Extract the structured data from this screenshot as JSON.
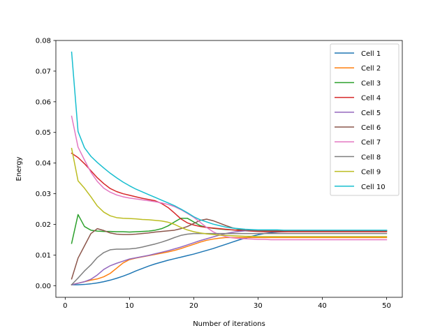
{
  "chart_data": {
    "type": "line",
    "title": "",
    "xlabel": "Number of iterations",
    "ylabel": "Energy",
    "xlim": [
      -1.45,
      52.45
    ],
    "ylim": [
      -0.0038,
      0.08
    ],
    "xticks": [
      0,
      10,
      20,
      30,
      40,
      50
    ],
    "xtick_labels": [
      "0",
      "10",
      "20",
      "30",
      "40",
      "50"
    ],
    "yticks": [
      0.0,
      0.01,
      0.02,
      0.03,
      0.04,
      0.05,
      0.06,
      0.07,
      0.08
    ],
    "ytick_labels": [
      "0.00",
      "0.01",
      "0.02",
      "0.03",
      "0.04",
      "0.05",
      "0.06",
      "0.07",
      "0.08"
    ],
    "grid": false,
    "legend": "top-right",
    "x": [
      1,
      2,
      3,
      4,
      5,
      6,
      7,
      8,
      9,
      10,
      11,
      12,
      13,
      14,
      15,
      16,
      17,
      18,
      19,
      20,
      21,
      22,
      23,
      24,
      25,
      26,
      27,
      28,
      29,
      30,
      31,
      32,
      33,
      34,
      35,
      36,
      37,
      38,
      39,
      40,
      41,
      42,
      43,
      44,
      45,
      46,
      47,
      48,
      49,
      50
    ],
    "series": [
      {
        "name": "Cell 1",
        "color": "#1f77b4",
        "values": [
          0.0003,
          0.0003,
          0.0004,
          0.0006,
          0.0009,
          0.0013,
          0.0018,
          0.0024,
          0.0031,
          0.0039,
          0.0048,
          0.0056,
          0.0064,
          0.0071,
          0.0077,
          0.0083,
          0.0088,
          0.0093,
          0.0098,
          0.0103,
          0.0109,
          0.0115,
          0.0121,
          0.0128,
          0.0135,
          0.0142,
          0.0149,
          0.0155,
          0.0161,
          0.0166,
          0.017,
          0.0173,
          0.0175,
          0.0176,
          0.0177,
          0.0177,
          0.0177,
          0.0177,
          0.0177,
          0.0177,
          0.0177,
          0.0177,
          0.0177,
          0.0177,
          0.0177,
          0.0177,
          0.0177,
          0.0177,
          0.0177,
          0.0177
        ]
      },
      {
        "name": "Cell 2",
        "color": "#ff7f0e",
        "values": [
          0.0003,
          0.0008,
          0.0013,
          0.0018,
          0.0022,
          0.0029,
          0.004,
          0.0057,
          0.0074,
          0.0085,
          0.009,
          0.0094,
          0.0098,
          0.0102,
          0.0106,
          0.011,
          0.0115,
          0.0121,
          0.0128,
          0.0135,
          0.0142,
          0.0148,
          0.0152,
          0.0155,
          0.0157,
          0.0157,
          0.0157,
          0.0157,
          0.0157,
          0.0157,
          0.0157,
          0.0157,
          0.0157,
          0.0157,
          0.0157,
          0.0157,
          0.0157,
          0.0157,
          0.0157,
          0.0157,
          0.0157,
          0.0157,
          0.0157,
          0.0157,
          0.0157,
          0.0157,
          0.0157,
          0.0157,
          0.0157,
          0.0157
        ]
      },
      {
        "name": "Cell 3",
        "color": "#2ca02c",
        "values": [
          0.0138,
          0.0232,
          0.0193,
          0.0181,
          0.0178,
          0.0177,
          0.0177,
          0.0176,
          0.0176,
          0.0175,
          0.0176,
          0.0177,
          0.0178,
          0.0181,
          0.0186,
          0.0195,
          0.0208,
          0.022,
          0.022,
          0.0208,
          0.0196,
          0.019,
          0.0187,
          0.0185,
          0.0183,
          0.0182,
          0.0181,
          0.018,
          0.018,
          0.018,
          0.018,
          0.018,
          0.018,
          0.018,
          0.018,
          0.018,
          0.018,
          0.018,
          0.018,
          0.018,
          0.018,
          0.018,
          0.018,
          0.018,
          0.018,
          0.018,
          0.018,
          0.018,
          0.018,
          0.018
        ]
      },
      {
        "name": "Cell 4",
        "color": "#d62728",
        "values": [
          0.0432,
          0.0418,
          0.0398,
          0.0375,
          0.0352,
          0.0333,
          0.0317,
          0.0307,
          0.03,
          0.0295,
          0.029,
          0.0285,
          0.0281,
          0.0277,
          0.0268,
          0.0255,
          0.0237,
          0.0218,
          0.0205,
          0.0198,
          0.0193,
          0.019,
          0.0188,
          0.0186,
          0.0184,
          0.0182,
          0.018,
          0.0179,
          0.0178,
          0.0177,
          0.0176,
          0.0176,
          0.0176,
          0.0176,
          0.0176,
          0.0176,
          0.0176,
          0.0176,
          0.0176,
          0.0176,
          0.0176,
          0.0176,
          0.0176,
          0.0176,
          0.0176,
          0.0176,
          0.0176,
          0.0176,
          0.0176,
          0.0176
        ]
      },
      {
        "name": "Cell 5",
        "color": "#9467bd",
        "values": [
          0.0003,
          0.0008,
          0.0013,
          0.0021,
          0.0035,
          0.0053,
          0.0065,
          0.0073,
          0.008,
          0.0087,
          0.0091,
          0.0095,
          0.0099,
          0.0104,
          0.0109,
          0.0114,
          0.012,
          0.0126,
          0.0133,
          0.014,
          0.0147,
          0.0153,
          0.0159,
          0.0165,
          0.017,
          0.0174,
          0.0177,
          0.0179,
          0.018,
          0.018,
          0.018,
          0.018,
          0.018,
          0.018,
          0.018,
          0.018,
          0.018,
          0.018,
          0.018,
          0.018,
          0.018,
          0.018,
          0.018,
          0.018,
          0.018,
          0.018,
          0.018,
          0.018,
          0.018,
          0.018
        ]
      },
      {
        "name": "Cell 6",
        "color": "#8c564b",
        "values": [
          0.0022,
          0.009,
          0.013,
          0.017,
          0.0186,
          0.018,
          0.0172,
          0.0168,
          0.0167,
          0.0167,
          0.0168,
          0.017,
          0.0172,
          0.0175,
          0.0177,
          0.0179,
          0.0181,
          0.0186,
          0.0193,
          0.0203,
          0.0213,
          0.0217,
          0.0212,
          0.0204,
          0.0196,
          0.0189,
          0.0184,
          0.0181,
          0.018,
          0.0179,
          0.0179,
          0.0179,
          0.0179,
          0.0179,
          0.0179,
          0.0179,
          0.0179,
          0.0179,
          0.0179,
          0.0179,
          0.0179,
          0.0179,
          0.0179,
          0.0179,
          0.0179,
          0.0179,
          0.0179,
          0.0179,
          0.0179,
          0.0179
        ]
      },
      {
        "name": "Cell 7",
        "color": "#e377c2",
        "values": [
          0.0553,
          0.0452,
          0.041,
          0.037,
          0.034,
          0.0318,
          0.0305,
          0.0296,
          0.029,
          0.0286,
          0.0283,
          0.028,
          0.0277,
          0.0274,
          0.027,
          0.0265,
          0.0258,
          0.0248,
          0.0236,
          0.0223,
          0.0207,
          0.019,
          0.0176,
          0.0166,
          0.016,
          0.0156,
          0.0154,
          0.0153,
          0.0152,
          0.0151,
          0.0151,
          0.015,
          0.015,
          0.015,
          0.015,
          0.015,
          0.015,
          0.015,
          0.015,
          0.015,
          0.015,
          0.015,
          0.015,
          0.015,
          0.015,
          0.015,
          0.015,
          0.015,
          0.015,
          0.015
        ]
      },
      {
        "name": "Cell 8",
        "color": "#7f7f7f",
        "values": [
          0.0003,
          0.0025,
          0.0048,
          0.0068,
          0.0092,
          0.0108,
          0.0117,
          0.0119,
          0.0119,
          0.012,
          0.0122,
          0.0126,
          0.0131,
          0.0136,
          0.0142,
          0.0149,
          0.0157,
          0.0164,
          0.0168,
          0.017,
          0.017,
          0.017,
          0.017,
          0.017,
          0.017,
          0.017,
          0.017,
          0.017,
          0.017,
          0.017,
          0.017,
          0.017,
          0.017,
          0.017,
          0.017,
          0.017,
          0.017,
          0.017,
          0.017,
          0.017,
          0.017,
          0.017,
          0.017,
          0.017,
          0.017,
          0.017,
          0.017,
          0.017,
          0.017,
          0.017
        ]
      },
      {
        "name": "Cell 9",
        "color": "#bcbd22",
        "values": [
          0.0448,
          0.0342,
          0.0318,
          0.029,
          0.026,
          0.024,
          0.0228,
          0.0222,
          0.022,
          0.0219,
          0.0218,
          0.0216,
          0.0215,
          0.0213,
          0.0211,
          0.0207,
          0.02,
          0.019,
          0.0182,
          0.0176,
          0.0172,
          0.0169,
          0.0167,
          0.0165,
          0.0164,
          0.0163,
          0.0162,
          0.0161,
          0.0161,
          0.016,
          0.016,
          0.016,
          0.016,
          0.016,
          0.016,
          0.016,
          0.016,
          0.016,
          0.016,
          0.016,
          0.016,
          0.016,
          0.016,
          0.016,
          0.016,
          0.016,
          0.016,
          0.016,
          0.016,
          0.016
        ]
      },
      {
        "name": "Cell 10",
        "color": "#17becf",
        "values": [
          0.0762,
          0.0503,
          0.045,
          0.0422,
          0.0402,
          0.0384,
          0.0367,
          0.0352,
          0.0338,
          0.0326,
          0.0315,
          0.0306,
          0.0297,
          0.0288,
          0.0279,
          0.027,
          0.0261,
          0.025,
          0.0238,
          0.0225,
          0.0215,
          0.0208,
          0.0201,
          0.0196,
          0.0191,
          0.0188,
          0.0186,
          0.0184,
          0.0183,
          0.0182,
          0.0182,
          0.0182,
          0.0182,
          0.0181,
          0.0181,
          0.0181,
          0.0181,
          0.0181,
          0.0181,
          0.0181,
          0.0181,
          0.0181,
          0.0181,
          0.0181,
          0.0181,
          0.0181,
          0.0181,
          0.0181,
          0.0181,
          0.0181
        ]
      }
    ]
  }
}
